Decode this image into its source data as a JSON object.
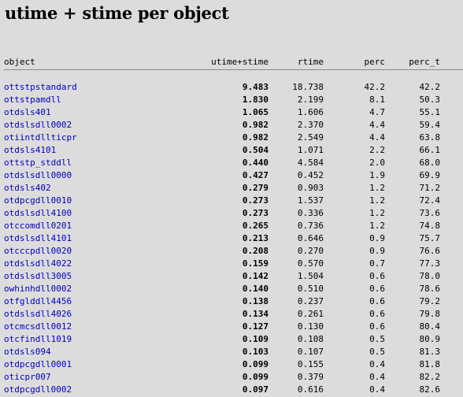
{
  "title": "utime + stime per object",
  "headers": {
    "object": "object",
    "utime_stime": "utime+stime",
    "rtime": "rtime",
    "perc": "perc",
    "perc_t": "perc_t"
  },
  "colors": {
    "background": "#dcdcdc",
    "link": "#0000c0",
    "rule": "#8a8a8a"
  },
  "rows": [
    {
      "object": "ottstpstandard",
      "utime_stime": "9.483",
      "rtime": "18.738",
      "perc": "42.2",
      "perc_t": "42.2"
    },
    {
      "object": "ottstpamdll",
      "utime_stime": "1.830",
      "rtime": "2.199",
      "perc": "8.1",
      "perc_t": "50.3"
    },
    {
      "object": "otdsls401",
      "utime_stime": "1.065",
      "rtime": "1.606",
      "perc": "4.7",
      "perc_t": "55.1"
    },
    {
      "object": "otdslsdll0002",
      "utime_stime": "0.982",
      "rtime": "2.370",
      "perc": "4.4",
      "perc_t": "59.4"
    },
    {
      "object": "otiintdllticpr",
      "utime_stime": "0.982",
      "rtime": "2.549",
      "perc": "4.4",
      "perc_t": "63.8"
    },
    {
      "object": "otdsls4101",
      "utime_stime": "0.504",
      "rtime": "1.071",
      "perc": "2.2",
      "perc_t": "66.1"
    },
    {
      "object": "ottstp_stddll",
      "utime_stime": "0.440",
      "rtime": "4.584",
      "perc": "2.0",
      "perc_t": "68.0"
    },
    {
      "object": "otdslsdll0000",
      "utime_stime": "0.427",
      "rtime": "0.452",
      "perc": "1.9",
      "perc_t": "69.9"
    },
    {
      "object": "otdsls402",
      "utime_stime": "0.279",
      "rtime": "0.903",
      "perc": "1.2",
      "perc_t": "71.2"
    },
    {
      "object": "otdpcgdll0010",
      "utime_stime": "0.273",
      "rtime": "1.537",
      "perc": "1.2",
      "perc_t": "72.4"
    },
    {
      "object": "otdslsdll4100",
      "utime_stime": "0.273",
      "rtime": "0.336",
      "perc": "1.2",
      "perc_t": "73.6"
    },
    {
      "object": "otccomdll0201",
      "utime_stime": "0.265",
      "rtime": "0.736",
      "perc": "1.2",
      "perc_t": "74.8"
    },
    {
      "object": "otdslsdll4101",
      "utime_stime": "0.213",
      "rtime": "0.646",
      "perc": "0.9",
      "perc_t": "75.7"
    },
    {
      "object": "otcccpdll0020",
      "utime_stime": "0.208",
      "rtime": "0.270",
      "perc": "0.9",
      "perc_t": "76.6"
    },
    {
      "object": "otdslsdll4022",
      "utime_stime": "0.159",
      "rtime": "0.570",
      "perc": "0.7",
      "perc_t": "77.3"
    },
    {
      "object": "otdslsdll3005",
      "utime_stime": "0.142",
      "rtime": "1.504",
      "perc": "0.6",
      "perc_t": "78.0"
    },
    {
      "object": "owhinhdll0002",
      "utime_stime": "0.140",
      "rtime": "0.510",
      "perc": "0.6",
      "perc_t": "78.6"
    },
    {
      "object": "otfglddll4456",
      "utime_stime": "0.138",
      "rtime": "0.237",
      "perc": "0.6",
      "perc_t": "79.2"
    },
    {
      "object": "otdslsdll4026",
      "utime_stime": "0.134",
      "rtime": "0.261",
      "perc": "0.6",
      "perc_t": "79.8"
    },
    {
      "object": "otcmcsdll0012",
      "utime_stime": "0.127",
      "rtime": "0.130",
      "perc": "0.6",
      "perc_t": "80.4"
    },
    {
      "object": "otcfindll1019",
      "utime_stime": "0.109",
      "rtime": "0.108",
      "perc": "0.5",
      "perc_t": "80.9"
    },
    {
      "object": "otdsls094",
      "utime_stime": "0.103",
      "rtime": "0.107",
      "perc": "0.5",
      "perc_t": "81.3"
    },
    {
      "object": "otdpcgdll0001",
      "utime_stime": "0.099",
      "rtime": "0.155",
      "perc": "0.4",
      "perc_t": "81.8"
    },
    {
      "object": "oticpr007",
      "utime_stime": "0.099",
      "rtime": "0.379",
      "perc": "0.4",
      "perc_t": "82.2"
    },
    {
      "object": "otdpcgdll0002",
      "utime_stime": "0.097",
      "rtime": "0.616",
      "perc": "0.4",
      "perc_t": "82.6"
    }
  ]
}
